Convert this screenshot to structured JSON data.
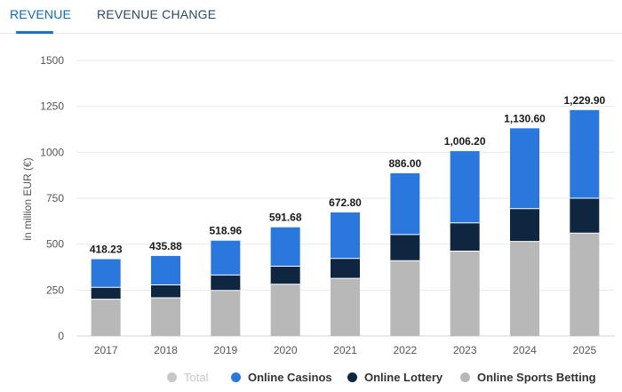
{
  "tabs": [
    {
      "label": "REVENUE",
      "active": true
    },
    {
      "label": "REVENUE CHANGE",
      "active": false
    }
  ],
  "colors": {
    "accent": "#1f6fc5",
    "total": "#c7c7c7",
    "online_casinos": "#2a78de",
    "online_lottery": "#0f2640",
    "online_sports_betting": "#b8b8b8"
  },
  "legend": [
    {
      "label": "Total",
      "color": "#c7c7c7",
      "muted": true
    },
    {
      "label": "Online Casinos",
      "color": "#2a78de",
      "muted": false
    },
    {
      "label": "Online Lottery",
      "color": "#0f2640",
      "muted": false
    },
    {
      "label": "Online Sports Betting",
      "color": "#b8b8b8",
      "muted": false
    }
  ],
  "chart_data": {
    "type": "bar",
    "stacked": true,
    "ylabel": "in million EUR (€)",
    "ylim": [
      0,
      1500
    ],
    "yticks": [
      0,
      250,
      500,
      750,
      1000,
      1250,
      1500
    ],
    "grid": true,
    "legend_position": "bottom",
    "categories": [
      "2017",
      "2018",
      "2019",
      "2020",
      "2021",
      "2022",
      "2023",
      "2024",
      "2025"
    ],
    "totals": [
      "418.23",
      "435.88",
      "518.96",
      "591.68",
      "672.80",
      "886.00",
      "1,006.20",
      "1,130.60",
      "1,229.90"
    ],
    "series": [
      {
        "name": "Online Sports Betting",
        "color": "#b8b8b8",
        "values": [
          200,
          208,
          248,
          282,
          314,
          410,
          462,
          515,
          560
        ]
      },
      {
        "name": "Online Lottery",
        "color": "#0f2640",
        "values": [
          65,
          70,
          84,
          98,
          108,
          142,
          154,
          178,
          190
        ]
      },
      {
        "name": "Online Casinos",
        "color": "#2a78de",
        "values": [
          153.23,
          157.88,
          186.96,
          211.68,
          250.8,
          334,
          390.2,
          437.6,
          479.9
        ]
      }
    ]
  }
}
